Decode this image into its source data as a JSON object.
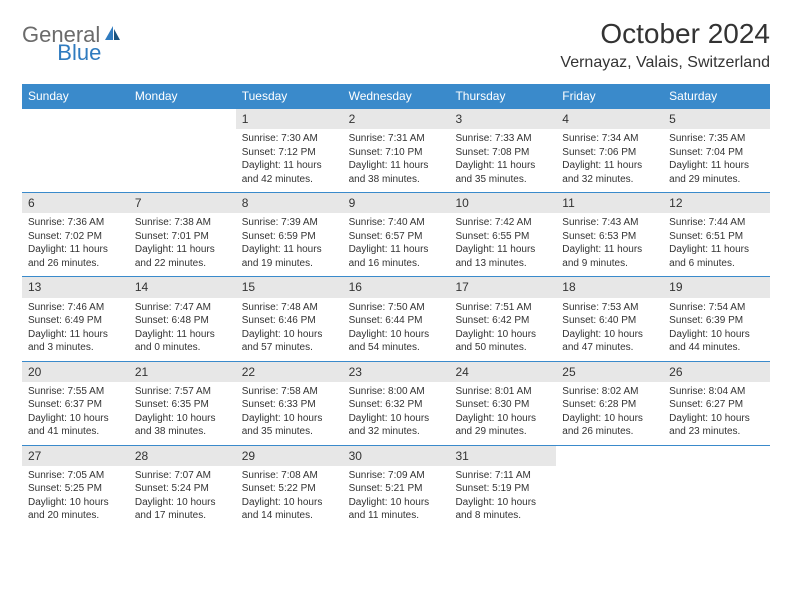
{
  "logo": {
    "general": "General",
    "blue": "Blue"
  },
  "title": "October 2024",
  "location": "Vernayaz, Valais, Switzerland",
  "weekdays": [
    "Sunday",
    "Monday",
    "Tuesday",
    "Wednesday",
    "Thursday",
    "Friday",
    "Saturday"
  ],
  "colors": {
    "header_bg": "#3a8acb",
    "header_text": "#ffffff",
    "daynum_bg": "#e7e7e7",
    "border": "#3a8acb",
    "logo_gray": "#6b6b6b",
    "logo_blue": "#2f7bbf",
    "text": "#333333",
    "page_bg": "#ffffff"
  },
  "layout": {
    "columns": 7,
    "rows": 5,
    "cell_font_size": 10,
    "daynum_font_size": 12,
    "weekday_font_size": 12,
    "title_font_size": 28,
    "location_font_size": 16
  },
  "days": [
    {
      "n": "",
      "sr": "",
      "ss": "",
      "dl": "",
      "empty": true
    },
    {
      "n": "",
      "sr": "",
      "ss": "",
      "dl": "",
      "empty": true
    },
    {
      "n": "1",
      "sr": "Sunrise: 7:30 AM",
      "ss": "Sunset: 7:12 PM",
      "dl": "Daylight: 11 hours and 42 minutes."
    },
    {
      "n": "2",
      "sr": "Sunrise: 7:31 AM",
      "ss": "Sunset: 7:10 PM",
      "dl": "Daylight: 11 hours and 38 minutes."
    },
    {
      "n": "3",
      "sr": "Sunrise: 7:33 AM",
      "ss": "Sunset: 7:08 PM",
      "dl": "Daylight: 11 hours and 35 minutes."
    },
    {
      "n": "4",
      "sr": "Sunrise: 7:34 AM",
      "ss": "Sunset: 7:06 PM",
      "dl": "Daylight: 11 hours and 32 minutes."
    },
    {
      "n": "5",
      "sr": "Sunrise: 7:35 AM",
      "ss": "Sunset: 7:04 PM",
      "dl": "Daylight: 11 hours and 29 minutes."
    },
    {
      "n": "6",
      "sr": "Sunrise: 7:36 AM",
      "ss": "Sunset: 7:02 PM",
      "dl": "Daylight: 11 hours and 26 minutes."
    },
    {
      "n": "7",
      "sr": "Sunrise: 7:38 AM",
      "ss": "Sunset: 7:01 PM",
      "dl": "Daylight: 11 hours and 22 minutes."
    },
    {
      "n": "8",
      "sr": "Sunrise: 7:39 AM",
      "ss": "Sunset: 6:59 PM",
      "dl": "Daylight: 11 hours and 19 minutes."
    },
    {
      "n": "9",
      "sr": "Sunrise: 7:40 AM",
      "ss": "Sunset: 6:57 PM",
      "dl": "Daylight: 11 hours and 16 minutes."
    },
    {
      "n": "10",
      "sr": "Sunrise: 7:42 AM",
      "ss": "Sunset: 6:55 PM",
      "dl": "Daylight: 11 hours and 13 minutes."
    },
    {
      "n": "11",
      "sr": "Sunrise: 7:43 AM",
      "ss": "Sunset: 6:53 PM",
      "dl": "Daylight: 11 hours and 9 minutes."
    },
    {
      "n": "12",
      "sr": "Sunrise: 7:44 AM",
      "ss": "Sunset: 6:51 PM",
      "dl": "Daylight: 11 hours and 6 minutes."
    },
    {
      "n": "13",
      "sr": "Sunrise: 7:46 AM",
      "ss": "Sunset: 6:49 PM",
      "dl": "Daylight: 11 hours and 3 minutes."
    },
    {
      "n": "14",
      "sr": "Sunrise: 7:47 AM",
      "ss": "Sunset: 6:48 PM",
      "dl": "Daylight: 11 hours and 0 minutes."
    },
    {
      "n": "15",
      "sr": "Sunrise: 7:48 AM",
      "ss": "Sunset: 6:46 PM",
      "dl": "Daylight: 10 hours and 57 minutes."
    },
    {
      "n": "16",
      "sr": "Sunrise: 7:50 AM",
      "ss": "Sunset: 6:44 PM",
      "dl": "Daylight: 10 hours and 54 minutes."
    },
    {
      "n": "17",
      "sr": "Sunrise: 7:51 AM",
      "ss": "Sunset: 6:42 PM",
      "dl": "Daylight: 10 hours and 50 minutes."
    },
    {
      "n": "18",
      "sr": "Sunrise: 7:53 AM",
      "ss": "Sunset: 6:40 PM",
      "dl": "Daylight: 10 hours and 47 minutes."
    },
    {
      "n": "19",
      "sr": "Sunrise: 7:54 AM",
      "ss": "Sunset: 6:39 PM",
      "dl": "Daylight: 10 hours and 44 minutes."
    },
    {
      "n": "20",
      "sr": "Sunrise: 7:55 AM",
      "ss": "Sunset: 6:37 PM",
      "dl": "Daylight: 10 hours and 41 minutes."
    },
    {
      "n": "21",
      "sr": "Sunrise: 7:57 AM",
      "ss": "Sunset: 6:35 PM",
      "dl": "Daylight: 10 hours and 38 minutes."
    },
    {
      "n": "22",
      "sr": "Sunrise: 7:58 AM",
      "ss": "Sunset: 6:33 PM",
      "dl": "Daylight: 10 hours and 35 minutes."
    },
    {
      "n": "23",
      "sr": "Sunrise: 8:00 AM",
      "ss": "Sunset: 6:32 PM",
      "dl": "Daylight: 10 hours and 32 minutes."
    },
    {
      "n": "24",
      "sr": "Sunrise: 8:01 AM",
      "ss": "Sunset: 6:30 PM",
      "dl": "Daylight: 10 hours and 29 minutes."
    },
    {
      "n": "25",
      "sr": "Sunrise: 8:02 AM",
      "ss": "Sunset: 6:28 PM",
      "dl": "Daylight: 10 hours and 26 minutes."
    },
    {
      "n": "26",
      "sr": "Sunrise: 8:04 AM",
      "ss": "Sunset: 6:27 PM",
      "dl": "Daylight: 10 hours and 23 minutes."
    },
    {
      "n": "27",
      "sr": "Sunrise: 7:05 AM",
      "ss": "Sunset: 5:25 PM",
      "dl": "Daylight: 10 hours and 20 minutes."
    },
    {
      "n": "28",
      "sr": "Sunrise: 7:07 AM",
      "ss": "Sunset: 5:24 PM",
      "dl": "Daylight: 10 hours and 17 minutes."
    },
    {
      "n": "29",
      "sr": "Sunrise: 7:08 AM",
      "ss": "Sunset: 5:22 PM",
      "dl": "Daylight: 10 hours and 14 minutes."
    },
    {
      "n": "30",
      "sr": "Sunrise: 7:09 AM",
      "ss": "Sunset: 5:21 PM",
      "dl": "Daylight: 10 hours and 11 minutes."
    },
    {
      "n": "31",
      "sr": "Sunrise: 7:11 AM",
      "ss": "Sunset: 5:19 PM",
      "dl": "Daylight: 10 hours and 8 minutes."
    },
    {
      "n": "",
      "sr": "",
      "ss": "",
      "dl": "",
      "empty": true
    },
    {
      "n": "",
      "sr": "",
      "ss": "",
      "dl": "",
      "empty": true
    }
  ]
}
